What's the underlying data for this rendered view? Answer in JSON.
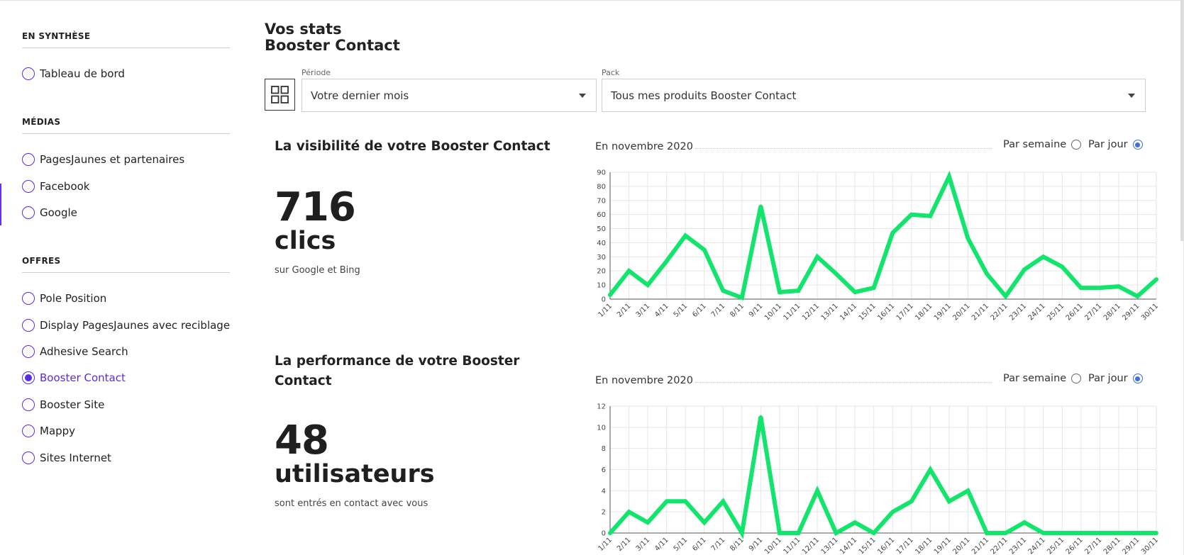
{
  "sidebar": {
    "sections": [
      {
        "title": "EN SYNTHÈSE",
        "items": [
          {
            "label": "Tableau de bord",
            "active": false
          }
        ]
      },
      {
        "title": "MÉDIAS",
        "items": [
          {
            "label": "PagesJaunes et partenaires",
            "active": false
          },
          {
            "label": "Facebook",
            "active": false
          },
          {
            "label": "Google",
            "active": false
          }
        ]
      },
      {
        "title": "OFFRES",
        "items": [
          {
            "label": "Pole Position",
            "active": false
          },
          {
            "label": "Display PagesJaunes avec reciblage",
            "active": false
          },
          {
            "label": "Adhesive Search",
            "active": false
          },
          {
            "label": "Booster Contact",
            "active": true
          },
          {
            "label": "Booster Site",
            "active": false
          },
          {
            "label": "Mappy",
            "active": false
          },
          {
            "label": "Sites Internet",
            "active": false
          }
        ]
      }
    ]
  },
  "header": {
    "title_line1": "Vos stats",
    "title_line2": "Booster Contact"
  },
  "filters": {
    "period": {
      "label": "Période",
      "value": "Votre dernier mois"
    },
    "pack": {
      "label": "Pack",
      "value": "Tous mes produits Booster Contact"
    }
  },
  "visibility": {
    "title": "La visibilité de votre Booster Contact",
    "number": "716",
    "unit": "clics",
    "caption": "sur Google et Bing",
    "period": "En novembre 2020",
    "toggle_week": "Par semaine",
    "toggle_day": "Par jour",
    "selected": "day"
  },
  "performance": {
    "title_line1": "La performance de votre Booster",
    "title_line2": "Contact",
    "number": "48",
    "unit": "utilisateurs",
    "caption": "sont entrés en contact avec vous",
    "period": "En novembre 2020",
    "toggle_week": "Par semaine",
    "toggle_day": "Par jour",
    "selected": "day"
  },
  "colors": {
    "accent": "#5b2be0",
    "line": "#11e56b",
    "toggle": "#3d6fe0"
  },
  "chart_data": [
    {
      "type": "line",
      "x": [
        "1/11",
        "2/11",
        "3/11",
        "4/11",
        "5/11",
        "6/11",
        "7/11",
        "8/11",
        "9/11",
        "10/11",
        "11/11",
        "12/11",
        "13/11",
        "14/11",
        "15/11",
        "16/11",
        "17/11",
        "18/11",
        "19/11",
        "20/11",
        "21/11",
        "22/11",
        "23/11",
        "24/11",
        "25/11",
        "26/11",
        "27/11",
        "28/11",
        "29/11",
        "30/11"
      ],
      "series": [
        {
          "values": [
            3,
            20,
            10,
            27,
            45,
            35,
            6,
            1,
            66,
            5,
            6,
            30,
            18,
            5,
            8,
            47,
            60,
            59,
            87,
            43,
            18,
            2,
            21,
            30,
            23,
            8,
            8,
            9,
            2,
            14
          ]
        }
      ],
      "yticks": [
        0,
        10,
        20,
        30,
        40,
        50,
        60,
        70,
        80,
        90
      ],
      "ylim": [
        0,
        90
      ],
      "grid": true,
      "xlabel": "",
      "ylabel": ""
    },
    {
      "type": "line",
      "x": [
        "1/11",
        "2/11",
        "3/11",
        "4/11",
        "5/11",
        "6/11",
        "7/11",
        "8/11",
        "9/11",
        "10/11",
        "11/11",
        "12/11",
        "13/11",
        "14/11",
        "15/11",
        "16/11",
        "17/11",
        "18/11",
        "19/11",
        "20/11",
        "21/11",
        "22/11",
        "23/11",
        "24/11",
        "25/11",
        "26/11",
        "27/11",
        "28/11",
        "29/11",
        "30/11"
      ],
      "series": [
        {
          "values": [
            0,
            2,
            1,
            3,
            3,
            1,
            3,
            0,
            11,
            0,
            0,
            4,
            0,
            1,
            0,
            2,
            3,
            6,
            3,
            4,
            0,
            0,
            1,
            0,
            0,
            0,
            0,
            0,
            0,
            0
          ]
        }
      ],
      "yticks": [
        0,
        2,
        4,
        6,
        8,
        10,
        12
      ],
      "ylim": [
        0,
        12
      ],
      "grid": true,
      "xlabel": "",
      "ylabel": ""
    }
  ]
}
